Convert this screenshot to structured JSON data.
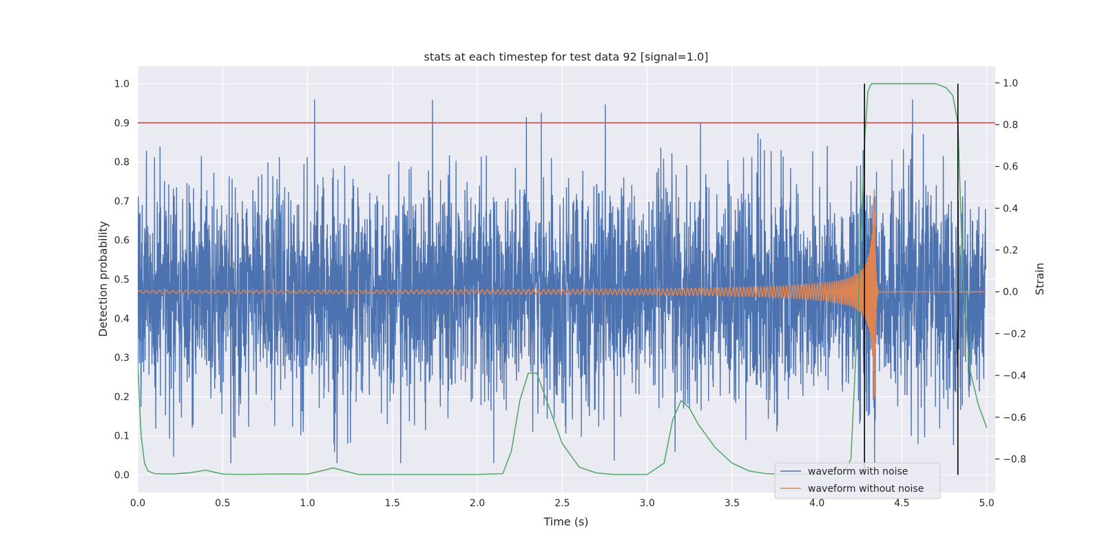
{
  "chart_data": {
    "type": "line",
    "title": "stats at each timestep for test data 92 [signal=1.0]",
    "xlabel": "Time (s)",
    "ylabel_left": "Detection probability",
    "ylabel_right": "Strain",
    "xlim": [
      0.0,
      5.05
    ],
    "ylim_left": [
      -0.045,
      1.045
    ],
    "ylim_right": [
      -0.96,
      1.08
    ],
    "xticks": [
      "0.0",
      "0.5",
      "1.0",
      "1.5",
      "2.0",
      "2.5",
      "3.0",
      "3.5",
      "4.0",
      "4.5",
      "5.0"
    ],
    "yticks_left": [
      "0.0",
      "0.1",
      "0.2",
      "0.3",
      "0.4",
      "0.5",
      "0.6",
      "0.7",
      "0.8",
      "0.9",
      "1.0"
    ],
    "yticks_right": [
      "−0.8",
      "−0.6",
      "−0.4",
      "−0.2",
      "0.0",
      "0.2",
      "0.4",
      "0.6",
      "0.8",
      "1.0"
    ],
    "grid": true,
    "legend_position": "lower-right",
    "threshold": {
      "value": 0.9,
      "color": "#c44e52"
    },
    "vertical_markers": [
      4.28,
      4.83
    ],
    "colors": {
      "noise": "#4c72b0",
      "clean": "#dd8452",
      "probability": "#55a868",
      "background": "#eaeaf2"
    },
    "series": [
      {
        "name": "waveform with noise",
        "axis": "right",
        "note_visible": "dense noisy strain roughly between -0.8 and 0.8"
      },
      {
        "name": "waveform without noise",
        "axis": "right",
        "chirp": {
          "start_amplitude": 0.03,
          "peak_time": 4.34,
          "peak_amplitude_min": -0.6,
          "peak_amplitude_max": 0.42,
          "ringdown_end": 4.36
        }
      },
      {
        "name": "",
        "axis": "left",
        "x": [
          0.0,
          0.02,
          0.04,
          0.06,
          0.1,
          0.2,
          0.3,
          0.4,
          0.5,
          0.6,
          0.8,
          1.0,
          1.1,
          1.15,
          1.2,
          1.3,
          1.5,
          2.0,
          2.15,
          2.2,
          2.25,
          2.3,
          2.35,
          2.4,
          2.5,
          2.6,
          2.7,
          2.8,
          3.0,
          3.1,
          3.15,
          3.2,
          3.25,
          3.3,
          3.4,
          3.5,
          3.6,
          3.7,
          3.8,
          4.0,
          4.15,
          4.2,
          4.25,
          4.28,
          4.3,
          4.32,
          4.35,
          4.5,
          4.7,
          4.76,
          4.8,
          4.83,
          4.86,
          4.9,
          4.95,
          5.0
        ],
        "values": [
          0.28,
          0.1,
          0.03,
          0.01,
          0.003,
          0.002,
          0.005,
          0.012,
          0.002,
          0.001,
          0.002,
          0.002,
          0.012,
          0.018,
          0.012,
          0.001,
          0.001,
          0.001,
          0.003,
          0.06,
          0.19,
          0.26,
          0.26,
          0.2,
          0.08,
          0.02,
          0.005,
          0.001,
          0.001,
          0.03,
          0.14,
          0.19,
          0.17,
          0.13,
          0.07,
          0.03,
          0.01,
          0.003,
          0.002,
          0.001,
          0.002,
          0.04,
          0.5,
          0.85,
          0.98,
          1.0,
          1.0,
          1.0,
          1.0,
          0.99,
          0.97,
          0.9,
          0.5,
          0.27,
          0.18,
          0.12
        ]
      }
    ]
  }
}
